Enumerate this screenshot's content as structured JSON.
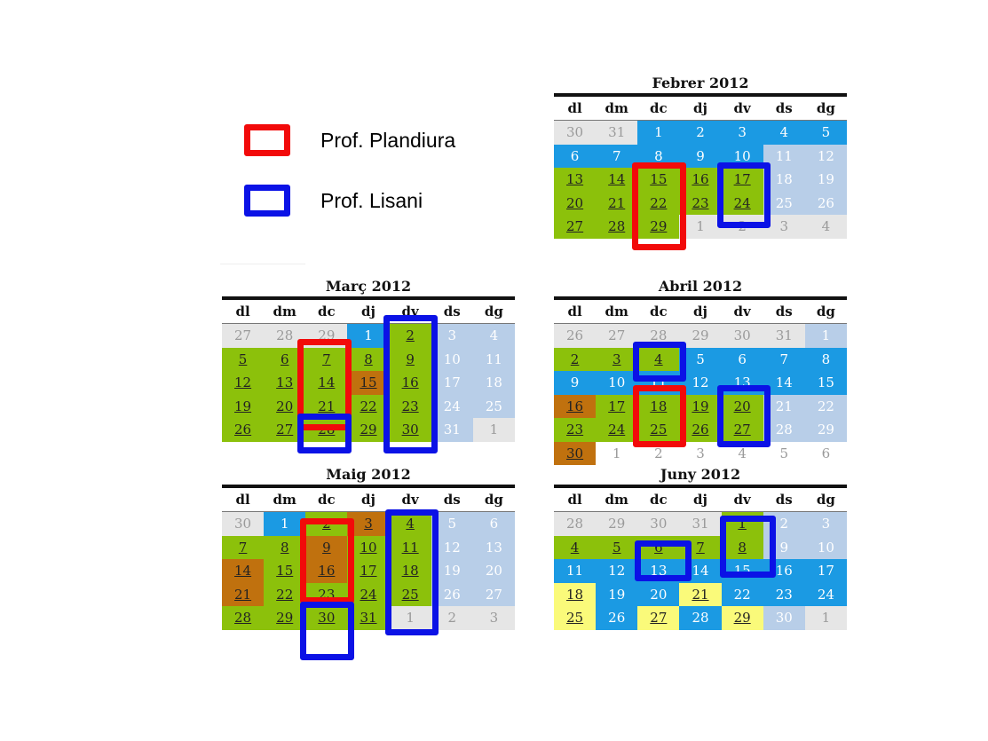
{
  "colors": {
    "red_frame": "#f20a0a",
    "blue_frame": "#0b12e6",
    "green": "#8cc10b",
    "blue": "#1b9ae3",
    "light_blue": "#b8cee8",
    "gray": "#e6e6e6",
    "brown": "#c0710e",
    "yellow": "#fafa7a",
    "white": "#ffffff"
  },
  "legend": [
    {
      "label": "Prof. Plandiura",
      "color": "red"
    },
    {
      "label": "Prof. Lisani",
      "color": "blue"
    }
  ],
  "weekdays": [
    "dl",
    "dm",
    "dc",
    "dj",
    "dv",
    "ds",
    "dg"
  ],
  "calendars": [
    {
      "title": "Febrer 2012",
      "cells": [
        [
          "30",
          "G"
        ],
        [
          "31",
          "G"
        ],
        [
          "1",
          "B"
        ],
        [
          "2",
          "B"
        ],
        [
          "3",
          "B"
        ],
        [
          "4",
          "B"
        ],
        [
          "5",
          "B"
        ],
        [
          "6",
          "B"
        ],
        [
          "7",
          "B"
        ],
        [
          "8",
          "B"
        ],
        [
          "9",
          "B"
        ],
        [
          "10",
          "B"
        ],
        [
          "11",
          "L"
        ],
        [
          "12",
          "L"
        ],
        [
          "13",
          "Vu"
        ],
        [
          "14",
          "Vu"
        ],
        [
          "15",
          "Vu"
        ],
        [
          "16",
          "Vu"
        ],
        [
          "17",
          "Vu"
        ],
        [
          "18",
          "L"
        ],
        [
          "19",
          "L"
        ],
        [
          "20",
          "Vu"
        ],
        [
          "21",
          "Vu"
        ],
        [
          "22",
          "Vu"
        ],
        [
          "23",
          "Vu"
        ],
        [
          "24",
          "Vu"
        ],
        [
          "25",
          "L"
        ],
        [
          "26",
          "L"
        ],
        [
          "27",
          "Vu"
        ],
        [
          "28",
          "Vu"
        ],
        [
          "29",
          "Vu"
        ],
        [
          "1",
          "G"
        ],
        [
          "2",
          "G"
        ],
        [
          "3",
          "G"
        ],
        [
          "4",
          "G"
        ]
      ]
    },
    {
      "title": "Març 2012",
      "cells": [
        [
          "27",
          "G"
        ],
        [
          "28",
          "G"
        ],
        [
          "29",
          "G"
        ],
        [
          "1",
          "B"
        ],
        [
          "2",
          "Vu"
        ],
        [
          "3",
          "L"
        ],
        [
          "4",
          "L"
        ],
        [
          "5",
          "Vu"
        ],
        [
          "6",
          "Vu"
        ],
        [
          "7",
          "Vu"
        ],
        [
          "8",
          "Vu"
        ],
        [
          "9",
          "Vu"
        ],
        [
          "10",
          "L"
        ],
        [
          "11",
          "L"
        ],
        [
          "12",
          "Vu"
        ],
        [
          "13",
          "Vu"
        ],
        [
          "14",
          "Vu"
        ],
        [
          "15",
          "Ou"
        ],
        [
          "16",
          "Vu"
        ],
        [
          "17",
          "L"
        ],
        [
          "18",
          "L"
        ],
        [
          "19",
          "Vu"
        ],
        [
          "20",
          "Vu"
        ],
        [
          "21",
          "Vu"
        ],
        [
          "22",
          "Vu"
        ],
        [
          "23",
          "Vu"
        ],
        [
          "24",
          "L"
        ],
        [
          "25",
          "L"
        ],
        [
          "26",
          "Vu"
        ],
        [
          "27",
          "Vu"
        ],
        [
          "28",
          "Vu"
        ],
        [
          "29",
          "Vu"
        ],
        [
          "30",
          "Vu"
        ],
        [
          "31",
          "L"
        ],
        [
          "1",
          "G"
        ]
      ]
    },
    {
      "title": "Abril 2012",
      "cells": [
        [
          "26",
          "G"
        ],
        [
          "27",
          "G"
        ],
        [
          "28",
          "G"
        ],
        [
          "29",
          "G"
        ],
        [
          "30",
          "G"
        ],
        [
          "31",
          "G"
        ],
        [
          "1",
          "L"
        ],
        [
          "2",
          "Vu"
        ],
        [
          "3",
          "Vu"
        ],
        [
          "4",
          "Vu"
        ],
        [
          "5",
          "B"
        ],
        [
          "6",
          "B"
        ],
        [
          "7",
          "B"
        ],
        [
          "8",
          "B"
        ],
        [
          "9",
          "B"
        ],
        [
          "10",
          "B"
        ],
        [
          "11",
          "B"
        ],
        [
          "12",
          "B"
        ],
        [
          "13",
          "B"
        ],
        [
          "14",
          "B"
        ],
        [
          "15",
          "B"
        ],
        [
          "16",
          "Ou"
        ],
        [
          "17",
          "Vu"
        ],
        [
          "18",
          "Vu"
        ],
        [
          "19",
          "Vu"
        ],
        [
          "20",
          "Vu"
        ],
        [
          "21",
          "L"
        ],
        [
          "22",
          "L"
        ],
        [
          "23",
          "Vu"
        ],
        [
          "24",
          "Vu"
        ],
        [
          "25",
          "Vu"
        ],
        [
          "26",
          "Vu"
        ],
        [
          "27",
          "Vu"
        ],
        [
          "28",
          "L"
        ],
        [
          "29",
          "L"
        ],
        [
          "30",
          "Ou"
        ],
        [
          "1",
          "W"
        ],
        [
          "2",
          "W"
        ],
        [
          "3",
          "W"
        ],
        [
          "4",
          "W"
        ],
        [
          "5",
          "W"
        ],
        [
          "6",
          "W"
        ]
      ]
    },
    {
      "title": "Maig 2012",
      "cells": [
        [
          "30",
          "G"
        ],
        [
          "1",
          "B"
        ],
        [
          "2",
          "Vu"
        ],
        [
          "3",
          "Ou"
        ],
        [
          "4",
          "Vu"
        ],
        [
          "5",
          "L"
        ],
        [
          "6",
          "L"
        ],
        [
          "7",
          "Vu"
        ],
        [
          "8",
          "Vu"
        ],
        [
          "9",
          "Ou"
        ],
        [
          "10",
          "Vu"
        ],
        [
          "11",
          "Vu"
        ],
        [
          "12",
          "L"
        ],
        [
          "13",
          "L"
        ],
        [
          "14",
          "Ou"
        ],
        [
          "15",
          "Vu"
        ],
        [
          "16",
          "Ou"
        ],
        [
          "17",
          "Vu"
        ],
        [
          "18",
          "Vu"
        ],
        [
          "19",
          "L"
        ],
        [
          "20",
          "L"
        ],
        [
          "21",
          "Ou"
        ],
        [
          "22",
          "Vu"
        ],
        [
          "23",
          "Vu"
        ],
        [
          "24",
          "Vu"
        ],
        [
          "25",
          "Vu"
        ],
        [
          "26",
          "L"
        ],
        [
          "27",
          "L"
        ],
        [
          "28",
          "Vu"
        ],
        [
          "29",
          "Vu"
        ],
        [
          "30",
          "Vu"
        ],
        [
          "31",
          "Vu"
        ],
        [
          "1",
          "G"
        ],
        [
          "2",
          "G"
        ],
        [
          "3",
          "G"
        ]
      ]
    },
    {
      "title": "Juny 2012",
      "cells": [
        [
          "28",
          "G"
        ],
        [
          "29",
          "G"
        ],
        [
          "30",
          "G"
        ],
        [
          "31",
          "G"
        ],
        [
          "1",
          "Vu"
        ],
        [
          "2",
          "L"
        ],
        [
          "3",
          "L"
        ],
        [
          "4",
          "Vu"
        ],
        [
          "5",
          "Vu"
        ],
        [
          "6",
          "Vu"
        ],
        [
          "7",
          "Vu"
        ],
        [
          "8",
          "Vu"
        ],
        [
          "9",
          "L"
        ],
        [
          "10",
          "L"
        ],
        [
          "11",
          "B"
        ],
        [
          "12",
          "B"
        ],
        [
          "13",
          "B"
        ],
        [
          "14",
          "B"
        ],
        [
          "15",
          "B"
        ],
        [
          "16",
          "B"
        ],
        [
          "17",
          "B"
        ],
        [
          "18",
          "Yu"
        ],
        [
          "19",
          "B"
        ],
        [
          "20",
          "B"
        ],
        [
          "21",
          "Yu"
        ],
        [
          "22",
          "B"
        ],
        [
          "23",
          "B"
        ],
        [
          "24",
          "B"
        ],
        [
          "25",
          "Yu"
        ],
        [
          "26",
          "B"
        ],
        [
          "27",
          "Yu"
        ],
        [
          "28",
          "B"
        ],
        [
          "29",
          "Yu"
        ],
        [
          "30",
          "L"
        ],
        [
          "1",
          "G"
        ]
      ]
    }
  ]
}
